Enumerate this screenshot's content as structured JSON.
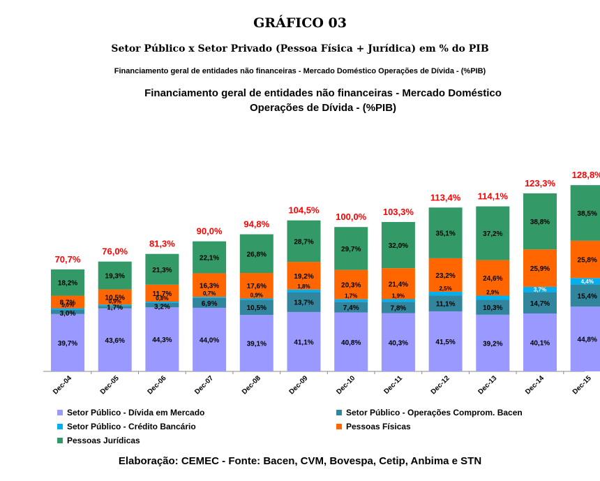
{
  "header": {
    "title": "GRÁFICO 03",
    "subtitle": "Setor Público x Setor Privado (Pessoa Física + Jurídica) em % do PIB",
    "subtitle2": "Financiamento geral de entidades não financeiras - Mercado Doméstico Operações de Dívida - (%PIB)"
  },
  "chart_data": {
    "type": "bar",
    "stacked": true,
    "title_line1": "Financiamento geral de entidades não financeiras - Mercado Doméstico",
    "title_line2": "Operações de Dívida - (%PIB)",
    "categories": [
      "Dec-04",
      "Dec-05",
      "Dec-06",
      "Dec-07",
      "Dec-08",
      "Dec-09",
      "Dec-10",
      "Dec-11",
      "Dec-12",
      "Dec-13",
      "Dec-14",
      "Dec-15"
    ],
    "series": [
      {
        "name": "Setor Público - Dívida em Mercado",
        "color": "#9999ff",
        "values": [
          39.7,
          43.6,
          44.3,
          44.0,
          39.1,
          41.1,
          40.8,
          40.3,
          41.5,
          39.2,
          40.1,
          44.8
        ],
        "labels": [
          "39,7%",
          "43,6%",
          "44,3%",
          "44,0%",
          "39,1%",
          "41,1%",
          "40,8%",
          "40,3%",
          "41,5%",
          "39,2%",
          "40,1%",
          "44,8%"
        ]
      },
      {
        "name": "Setor Público - Operações Comprom. Bacen",
        "color": "#31859c",
        "values": [
          3.0,
          1.7,
          3.2,
          6.9,
          10.5,
          13.7,
          7.4,
          7.8,
          11.1,
          10.3,
          14.7,
          15.4
        ],
        "labels": [
          "3,0%",
          "1,7%",
          "3,2%",
          "6,9%",
          "10,5%",
          "13,7%",
          "7,4%",
          "7,8%",
          "11,1%",
          "10,3%",
          "14,7%",
          "15,4%"
        ]
      },
      {
        "name": "Setor Público - Crédito Bancário",
        "color": "#00b0f0",
        "values": [
          1.0,
          0.9,
          0.8,
          0.7,
          0.9,
          1.8,
          1.7,
          1.9,
          2.5,
          2.9,
          3.7,
          4.4
        ],
        "labels": [
          "1,0%",
          "0,9%",
          "0,8%",
          "0,7%",
          "0,9%",
          "1,8%",
          "1,7%",
          "1,9%",
          "2,5%",
          "2,9%",
          "3,7%",
          "4,4%"
        ]
      },
      {
        "name": "Pessoas Físicas",
        "color": "#ff6600",
        "values": [
          8.7,
          10.5,
          11.7,
          16.3,
          17.6,
          19.2,
          20.3,
          21.4,
          23.2,
          24.6,
          25.9,
          25.8
        ],
        "labels": [
          "8,7%",
          "10,5%",
          "11,7%",
          "16,3%",
          "17,6%",
          "19,2%",
          "20,3%",
          "21,4%",
          "23,2%",
          "24,6%",
          "25,9%",
          "25,8%"
        ]
      },
      {
        "name": "Pessoas Jurídicas",
        "color": "#339966",
        "values": [
          18.2,
          19.3,
          21.3,
          22.1,
          26.8,
          28.7,
          29.7,
          32.0,
          35.1,
          37.2,
          38.8,
          38.5
        ],
        "labels": [
          "18,2%",
          "19,3%",
          "21,3%",
          "22,1%",
          "26,8%",
          "28,7%",
          "29,7%",
          "32,0%",
          "35,1%",
          "37,2%",
          "38,8%",
          "38,5%"
        ]
      }
    ],
    "totals": [
      70.7,
      76.0,
      81.3,
      90.0,
      94.8,
      104.5,
      100.0,
      103.3,
      113.4,
      114.1,
      123.3,
      128.8
    ],
    "total_labels": [
      "70,7%",
      "76,0%",
      "81,3%",
      "90,0%",
      "94,8%",
      "104,5%",
      "100,0%",
      "103,3%",
      "113,4%",
      "114,1%",
      "123,3%",
      "128,8%"
    ],
    "total_label_color": "#ff0000",
    "legend_position": "bottom",
    "grid": false
  },
  "footer": {
    "text": "Elaboração: CEMEC - Fonte: Bacen, CVM, Bovespa, Cetip, Anbima e STN"
  }
}
